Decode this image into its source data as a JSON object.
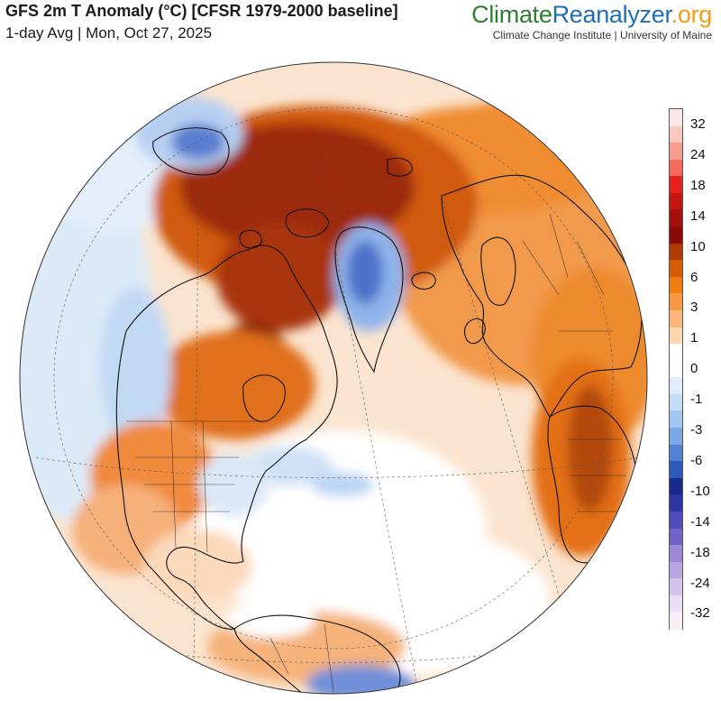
{
  "header": {
    "title": "GFS 2m T Anomaly (°C) [CFSR 1979-2000 baseline]",
    "subtitle": "1-day Avg | Mon, Oct 27, 2025"
  },
  "brand": {
    "part1": "Climate",
    "part2": "Reanalyzer",
    "part3": ".org",
    "tagline": "Climate Change Institute | University of Maine"
  },
  "map": {
    "projection": "orthographic",
    "view": "northern hemisphere, Atlantic-centered",
    "colors": {
      "ocean_background": "#fbe6d4",
      "land_outline": "#111111",
      "graticule": "#555555"
    }
  },
  "legend": {
    "labels": [
      "32",
      "24",
      "18",
      "14",
      "10",
      "6",
      "3",
      "1",
      "0",
      "-1",
      "-3",
      "-6",
      "-10",
      "-14",
      "-18",
      "-24",
      "-32"
    ],
    "colors": [
      "#fde7e6",
      "#fbc8c0",
      "#f79d8e",
      "#f26b5d",
      "#e8201b",
      "#c51712",
      "#a50f0c",
      "#8a0a08",
      "#b03a05",
      "#d45a06",
      "#f07d12",
      "#f59a42",
      "#f9b877",
      "#fcd6b0",
      "#ffffff",
      "#ffffff",
      "#e1ecfa",
      "#c4dcf5",
      "#a2c6ef",
      "#7aa9e5",
      "#5282d3",
      "#2f58bb",
      "#192a8a",
      "#2c35a0",
      "#4f4cb8",
      "#7162c6",
      "#9b89d6",
      "#b7a7e2",
      "#d2c5ec",
      "#e9dff4",
      "#f7eef6"
    ]
  }
}
